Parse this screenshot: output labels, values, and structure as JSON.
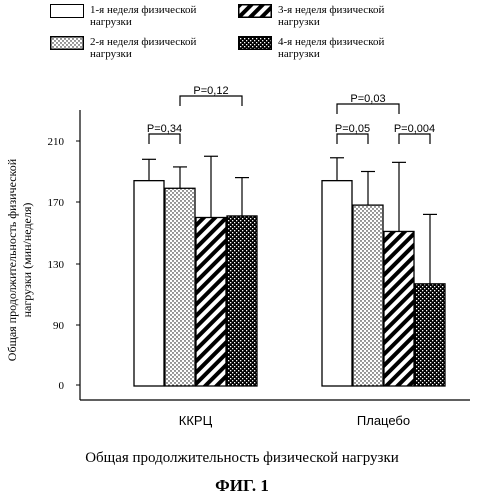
{
  "chart_data": {
    "type": "bar",
    "ylabel_line1": "Общая продолжительность физической",
    "ylabel_line2": "нагрузки (мин/неделя)",
    "categories": [
      "ККРЦ",
      "Плацебо"
    ],
    "yticks": [
      "210",
      "170",
      "130",
      "90",
      "0"
    ],
    "series": [
      {
        "name": "1-я неделя физической нагрузки",
        "values": [
          184,
          184
        ],
        "errors": [
          14,
          15
        ],
        "pattern": "white"
      },
      {
        "name": "2-я неделя физической нагрузки",
        "values": [
          179,
          168
        ],
        "errors": [
          14,
          22
        ],
        "pattern": "dots"
      },
      {
        "name": "3-я неделя физической нагрузки",
        "values": [
          160,
          151
        ],
        "errors": [
          40,
          45
        ],
        "pattern": "hatch"
      },
      {
        "name": "4-я неделя физической нагрузки",
        "values": [
          161,
          117
        ],
        "errors": [
          25,
          45
        ],
        "pattern": "checker"
      }
    ],
    "annotations": [
      {
        "text": "P=0,34",
        "group": 0
      },
      {
        "text": "P=0,12",
        "group": 0
      },
      {
        "text": "P=0,05",
        "group": 1
      },
      {
        "text": "P=0,03",
        "group": 1
      },
      {
        "text": "P=0,004",
        "group": 1
      }
    ]
  },
  "legend": [
    {
      "line1": "1-я неделя физической",
      "line2": "нагрузки"
    },
    {
      "line1": "2-я неделя физической",
      "line2": "нагрузки"
    },
    {
      "line1": "3-я неделя физической",
      "line2": "нагрузки"
    },
    {
      "line1": "4-я неделя физической",
      "line2": "нагрузки"
    }
  ],
  "caption": "Общая продолжительность физической нагрузки",
  "figure_label": "ФИГ. 1"
}
